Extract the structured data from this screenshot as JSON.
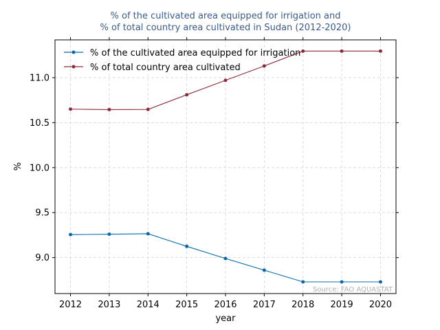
{
  "chart_data": {
    "type": "line",
    "title_lines": [
      "% of the cultivated area equipped for irrigation and",
      "% of total country area cultivated in Sudan (2012-2020)"
    ],
    "xlabel": "year",
    "ylabel": "%",
    "x": [
      2012,
      2013,
      2014,
      2015,
      2016,
      2017,
      2018,
      2019,
      2020
    ],
    "xticks": [
      "2012",
      "2013",
      "2014",
      "2015",
      "2016",
      "2017",
      "2018",
      "2019",
      "2020"
    ],
    "yticks": [
      "9.0",
      "9.5",
      "10.0",
      "10.5",
      "11.0"
    ],
    "ytick_values": [
      9.0,
      9.5,
      10.0,
      10.5,
      11.0
    ],
    "xlim": [
      2011.6,
      2020.4
    ],
    "ylim": [
      8.6,
      11.42
    ],
    "grid": true,
    "legend_position": "top-left",
    "series": [
      {
        "name": "% of the cultivated area equipped for irrigation",
        "color": "#0868ac",
        "values": [
          9.255,
          9.26,
          9.265,
          9.125,
          8.99,
          8.86,
          8.73,
          8.73,
          8.73
        ]
      },
      {
        "name": "% of total country area cultivated",
        "color": "#8b2a3a",
        "values": [
          10.65,
          10.645,
          10.647,
          10.81,
          10.97,
          11.13,
          11.295,
          11.295,
          11.295
        ]
      }
    ],
    "source": "Source: FAO AQUASTAT"
  }
}
